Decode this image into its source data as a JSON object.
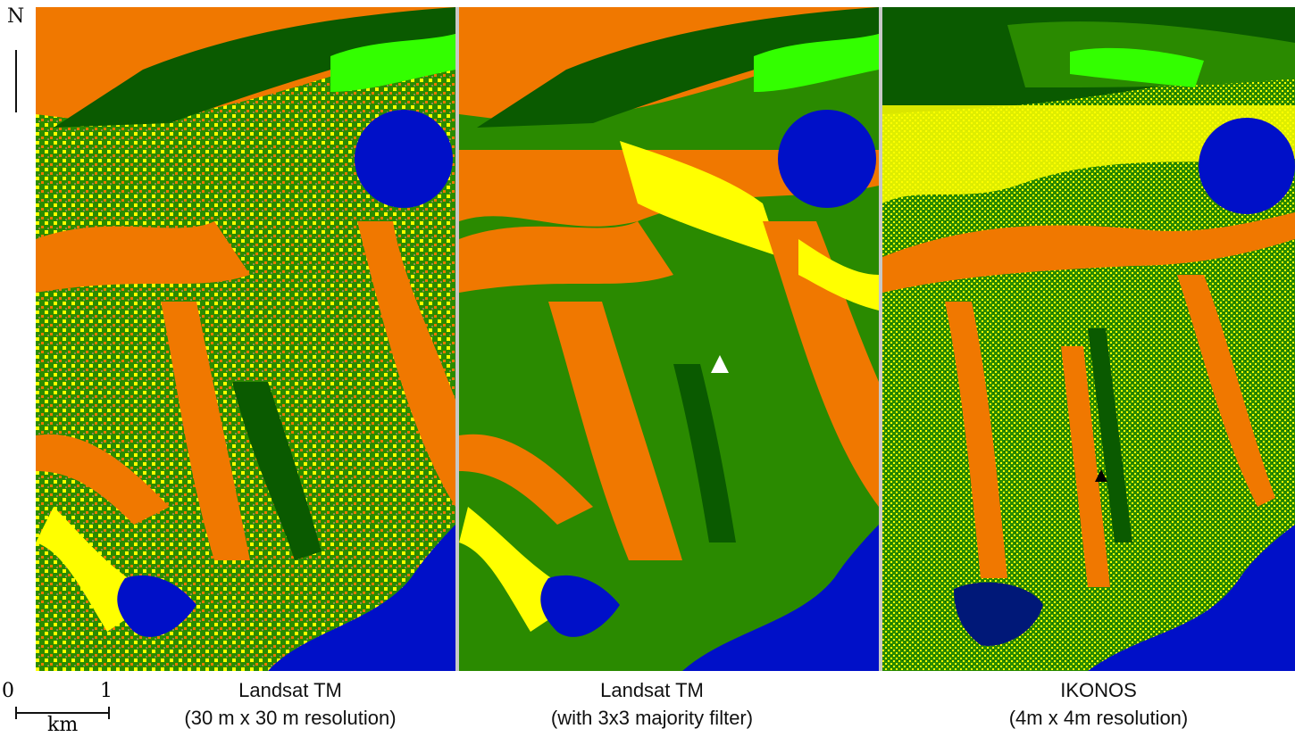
{
  "north_label": "N",
  "scale_bar": {
    "start": "0",
    "end": "1",
    "unit": "km"
  },
  "panels": [
    {
      "title": "Landsat TM",
      "subtitle": "(30 m x 30 m resolution)",
      "marker": "none"
    },
    {
      "title": "Landsat TM",
      "subtitle": "(with 3x3 majority filter)",
      "marker": "white-triangle"
    },
    {
      "title": "IKONOS",
      "subtitle": "(4m x 4m resolution)",
      "marker": "black-triangle"
    }
  ],
  "legend_colors": {
    "orange": "#f07800",
    "yellow": "#ffff00",
    "green": "#2a8a00",
    "dark_green": "#0a5a00",
    "light_green": "#33ff00",
    "brown_gray": "#8a8a50",
    "water_blue": "#0010c8",
    "dark_navy": "#001878"
  }
}
